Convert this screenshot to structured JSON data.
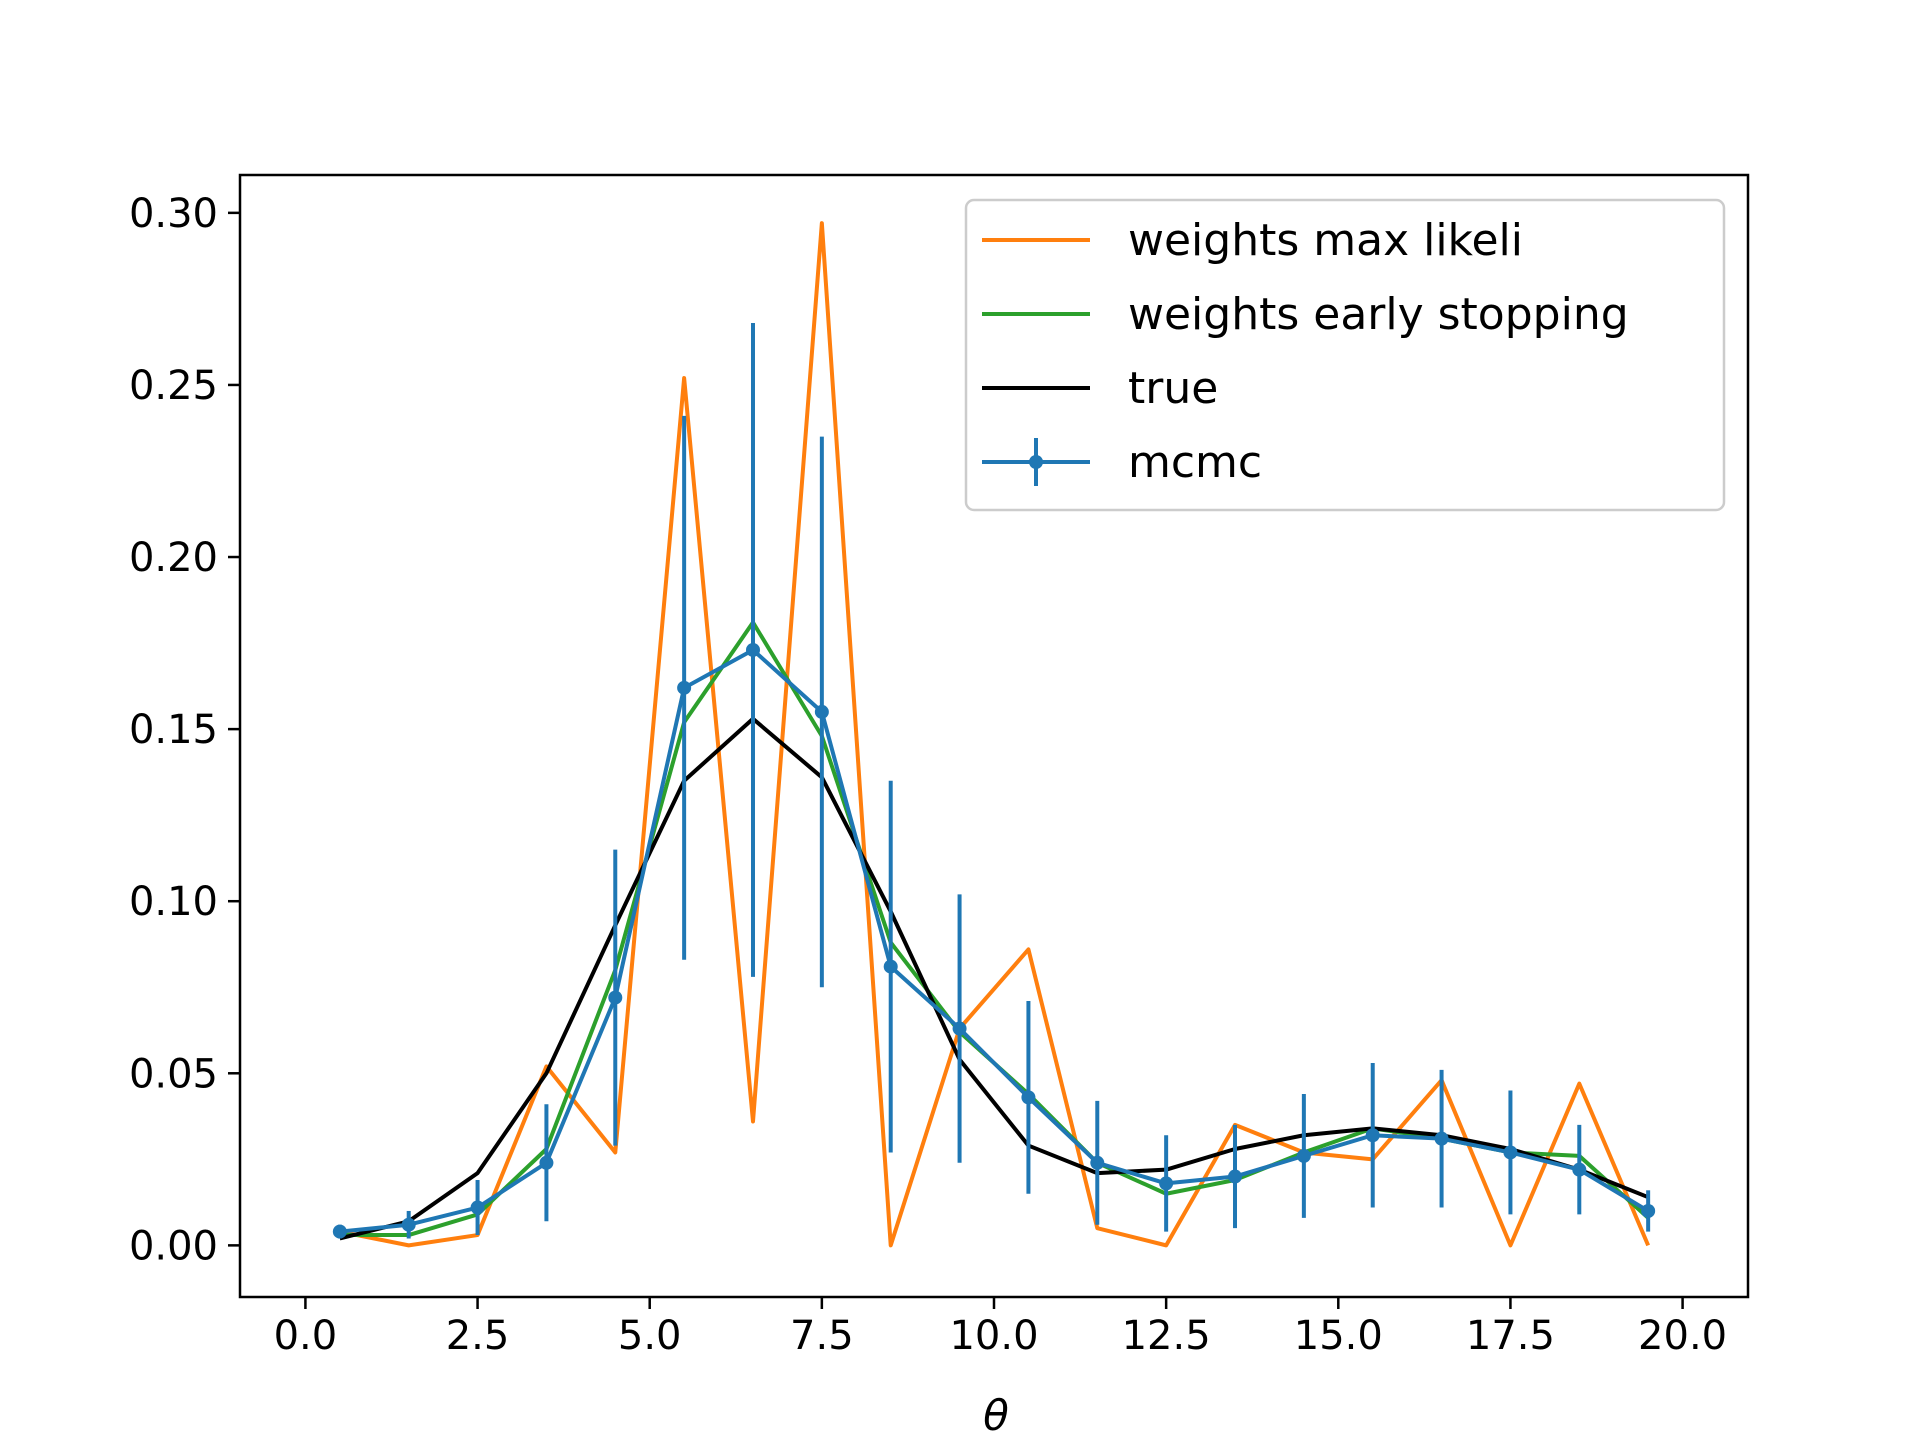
{
  "chart_data": {
    "type": "line",
    "title": "",
    "xlabel": "θ",
    "ylabel": "",
    "xlim": [
      -0.95,
      20.95
    ],
    "ylim": [
      -0.015,
      0.311
    ],
    "xticks": [
      0.0,
      2.5,
      5.0,
      7.5,
      10.0,
      12.5,
      15.0,
      17.5,
      20.0
    ],
    "xtick_labels": [
      "0.0",
      "2.5",
      "5.0",
      "7.5",
      "10.0",
      "12.5",
      "15.0",
      "17.5",
      "20.0"
    ],
    "yticks": [
      0.0,
      0.05,
      0.1,
      0.15,
      0.2,
      0.25,
      0.3
    ],
    "ytick_labels": [
      "0.00",
      "0.05",
      "0.10",
      "0.15",
      "0.20",
      "0.25",
      "0.30"
    ],
    "grid": false,
    "legend_position": "top-right",
    "x": [
      0.5,
      1.5,
      2.5,
      3.5,
      4.5,
      5.5,
      6.5,
      7.5,
      8.5,
      9.5,
      10.5,
      11.5,
      12.5,
      13.5,
      14.5,
      15.5,
      16.5,
      17.5,
      18.5,
      19.5
    ],
    "series": [
      {
        "name": "weights max likeli",
        "color": "#ff7f0e",
        "values": [
          0.004,
          0.0,
          0.003,
          0.052,
          0.027,
          0.252,
          0.036,
          0.297,
          0.0,
          0.063,
          0.086,
          0.005,
          0.0,
          0.035,
          0.027,
          0.025,
          0.048,
          0.0,
          0.047,
          0.0
        ]
      },
      {
        "name": "weights early stopping",
        "color": "#2ca02c",
        "values": [
          0.003,
          0.003,
          0.009,
          0.028,
          0.08,
          0.152,
          0.181,
          0.148,
          0.088,
          0.062,
          0.044,
          0.024,
          0.015,
          0.019,
          0.027,
          0.034,
          0.031,
          0.027,
          0.026,
          0.008
        ]
      },
      {
        "name": "true",
        "color": "#000000",
        "values": [
          0.002,
          0.007,
          0.021,
          0.05,
          0.093,
          0.135,
          0.153,
          0.136,
          0.097,
          0.054,
          0.029,
          0.021,
          0.022,
          0.028,
          0.032,
          0.034,
          0.032,
          0.028,
          0.022,
          0.014
        ]
      },
      {
        "name": "mcmc",
        "color": "#1f77b4",
        "values": [
          0.004,
          0.006,
          0.011,
          0.024,
          0.072,
          0.162,
          0.173,
          0.155,
          0.081,
          0.063,
          0.043,
          0.024,
          0.018,
          0.02,
          0.026,
          0.032,
          0.031,
          0.027,
          0.022,
          0.01
        ],
        "errors": [
          0.002,
          0.004,
          0.008,
          0.017,
          0.043,
          0.079,
          0.095,
          0.08,
          0.054,
          0.039,
          0.028,
          0.018,
          0.014,
          0.015,
          0.018,
          0.021,
          0.02,
          0.018,
          0.013,
          0.006
        ]
      }
    ]
  }
}
